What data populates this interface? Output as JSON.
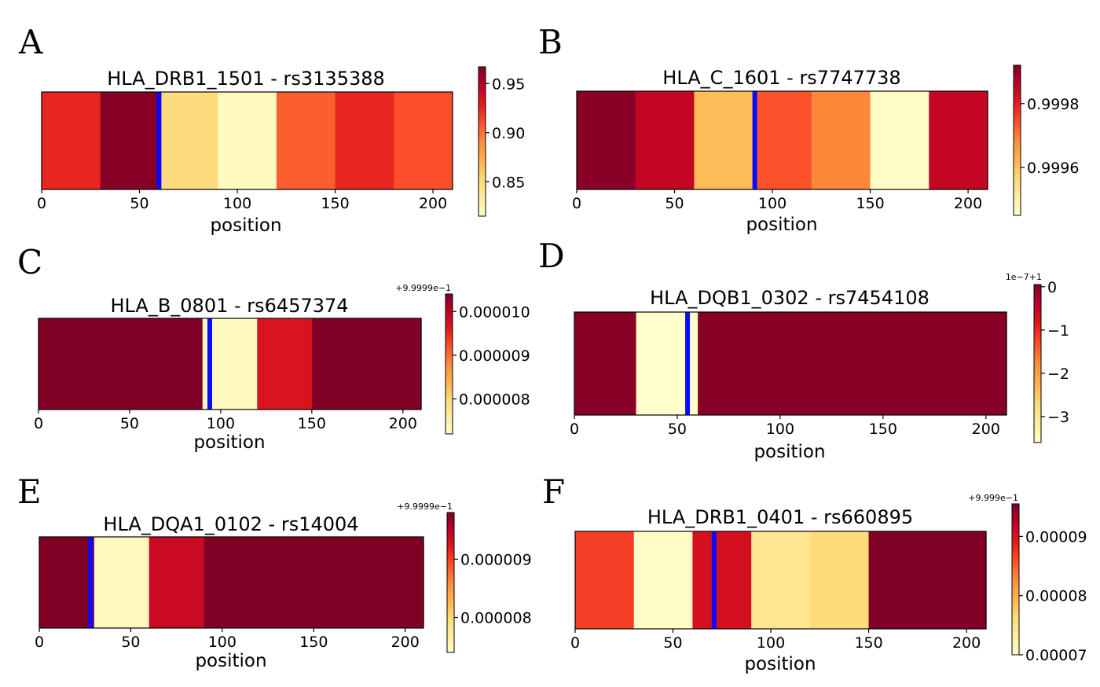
{
  "chart_data": [
    {
      "id": "A",
      "type": "heatmap",
      "panel_label": "A",
      "title": "HLA_DRB1_1501 - rs3135388",
      "xlabel": "position",
      "xlim": [
        0,
        210
      ],
      "xticks": [
        0,
        50,
        100,
        150,
        200
      ],
      "xtick_labels": [
        "0",
        "50",
        "100",
        "150",
        "200"
      ],
      "segments": [
        {
          "start": 0,
          "end": 30,
          "value": 0.925
        },
        {
          "start": 30,
          "end": 60,
          "value": 0.965
        },
        {
          "start": 60,
          "end": 90,
          "value": 0.85
        },
        {
          "start": 90,
          "end": 120,
          "value": 0.82
        },
        {
          "start": 120,
          "end": 150,
          "value": 0.905
        },
        {
          "start": 150,
          "end": 180,
          "value": 0.925
        },
        {
          "start": 180,
          "end": 210,
          "value": 0.91
        }
      ],
      "marker": 60,
      "colorbar": {
        "vmin": 0.815,
        "vmax": 0.967,
        "ticks": [
          0.85,
          0.9,
          0.95
        ],
        "tick_labels": [
          "0.85",
          "0.90",
          "0.95"
        ],
        "offset_text": ""
      }
    },
    {
      "id": "B",
      "type": "heatmap",
      "panel_label": "B",
      "title": "HLA_C_1601 - rs7747738",
      "xlabel": "position",
      "xlim": [
        0,
        210
      ],
      "xticks": [
        0,
        50,
        100,
        150,
        200
      ],
      "xtick_labels": [
        "0",
        "50",
        "100",
        "150",
        "200"
      ],
      "segments": [
        {
          "start": 0,
          "end": 30,
          "value": 0.99991
        },
        {
          "start": 30,
          "end": 60,
          "value": 0.99985
        },
        {
          "start": 60,
          "end": 90,
          "value": 0.99961
        },
        {
          "start": 90,
          "end": 120,
          "value": 0.99974
        },
        {
          "start": 120,
          "end": 150,
          "value": 0.99969
        },
        {
          "start": 150,
          "end": 180,
          "value": 0.99946
        },
        {
          "start": 180,
          "end": 210,
          "value": 0.99985
        }
      ],
      "marker": 91,
      "colorbar": {
        "vmin": 0.99945,
        "vmax": 0.99992,
        "ticks": [
          0.9996,
          0.9998
        ],
        "tick_labels": [
          "0.9996",
          "0.9998"
        ],
        "offset_text": ""
      }
    },
    {
      "id": "C",
      "type": "heatmap",
      "panel_label": "C",
      "title": "HLA_B_0801 - rs6457374",
      "xlabel": "position",
      "xlim": [
        0,
        210
      ],
      "xticks": [
        0,
        50,
        100,
        150,
        200
      ],
      "xtick_labels": [
        "0",
        "50",
        "100",
        "150",
        "200"
      ],
      "segments": [
        {
          "start": 0,
          "end": 90,
          "value": 1.04e-05
        },
        {
          "start": 90,
          "end": 120,
          "value": 7.3e-06
        },
        {
          "start": 120,
          "end": 150,
          "value": 9.7e-06
        },
        {
          "start": 150,
          "end": 210,
          "value": 1.04e-05
        }
      ],
      "marker": 94,
      "colorbar": {
        "vmin": 7.2e-06,
        "vmax": 1.04e-05,
        "ticks": [
          8e-06,
          9e-06,
          1e-05
        ],
        "tick_labels": [
          "0.000008",
          "0.000009",
          "0.000010"
        ],
        "offset_text": "+9.9999e−1"
      }
    },
    {
      "id": "D",
      "type": "heatmap",
      "panel_label": "D",
      "title": "HLA_DQB1_0302 - rs7454108",
      "xlabel": "position",
      "xlim": [
        0,
        210
      ],
      "xticks": [
        0,
        50,
        100,
        150,
        200
      ],
      "xtick_labels": [
        "0",
        "50",
        "100",
        "150",
        "200"
      ],
      "segments": [
        {
          "start": 0,
          "end": 30,
          "value": 0
        },
        {
          "start": 30,
          "end": 60,
          "value": -3.6
        },
        {
          "start": 60,
          "end": 210,
          "value": 0
        }
      ],
      "marker": 55,
      "colorbar": {
        "vmin": -3.6,
        "vmax": 0.05,
        "ticks": [
          -3,
          -2,
          -1,
          0
        ],
        "tick_labels": [
          "−3",
          "−2",
          "−1",
          "0"
        ],
        "offset_text": "1e−7+1"
      }
    },
    {
      "id": "E",
      "type": "heatmap",
      "panel_label": "E",
      "title": "HLA_DQA1_0102 - rs14004",
      "xlabel": "position",
      "xlim": [
        0,
        210
      ],
      "xticks": [
        0,
        50,
        100,
        150,
        200
      ],
      "xtick_labels": [
        "0",
        "50",
        "100",
        "150",
        "200"
      ],
      "segments": [
        {
          "start": 0,
          "end": 30,
          "value": 9.8e-06
        },
        {
          "start": 30,
          "end": 60,
          "value": 7.5e-06
        },
        {
          "start": 60,
          "end": 90,
          "value": 9.4e-06
        },
        {
          "start": 90,
          "end": 210,
          "value": 9.8e-06
        }
      ],
      "marker": 28,
      "colorbar": {
        "vmin": 7.4e-06,
        "vmax": 9.8e-06,
        "ticks": [
          8e-06,
          9e-06
        ],
        "tick_labels": [
          "0.000008",
          "0.000009"
        ],
        "offset_text": "+9.9999e−1"
      }
    },
    {
      "id": "F",
      "type": "heatmap",
      "panel_label": "F",
      "title": "HLA_DRB1_0401 - rs660895",
      "xlabel": "position",
      "xlim": [
        0,
        210
      ],
      "xticks": [
        0,
        50,
        100,
        150,
        200
      ],
      "xtick_labels": [
        "0",
        "50",
        "100",
        "150",
        "200"
      ],
      "segments": [
        {
          "start": 0,
          "end": 30,
          "value": 8.7e-05
        },
        {
          "start": 30,
          "end": 60,
          "value": 7.05e-05
        },
        {
          "start": 60,
          "end": 90,
          "value": 9.05e-05
        },
        {
          "start": 90,
          "end": 120,
          "value": 7.45e-05
        },
        {
          "start": 120,
          "end": 150,
          "value": 7.6e-05
        },
        {
          "start": 150,
          "end": 210,
          "value": 9.55e-05
        }
      ],
      "marker": 71,
      "colorbar": {
        "vmin": 7e-05,
        "vmax": 9.55e-05,
        "ticks": [
          7e-05,
          8e-05,
          9e-05
        ],
        "tick_labels": [
          "0.00007",
          "0.00008",
          "0.00009"
        ],
        "offset_text": "+9.999e−1"
      }
    }
  ],
  "colors": {
    "marker": "#0a0aff",
    "axis": "#000000",
    "colormap": [
      "#ffffcc",
      "#ffeda0",
      "#fed976",
      "#feb24c",
      "#fd8d3c",
      "#fc4e2a",
      "#e31a1c",
      "#bd0026",
      "#800026"
    ]
  }
}
